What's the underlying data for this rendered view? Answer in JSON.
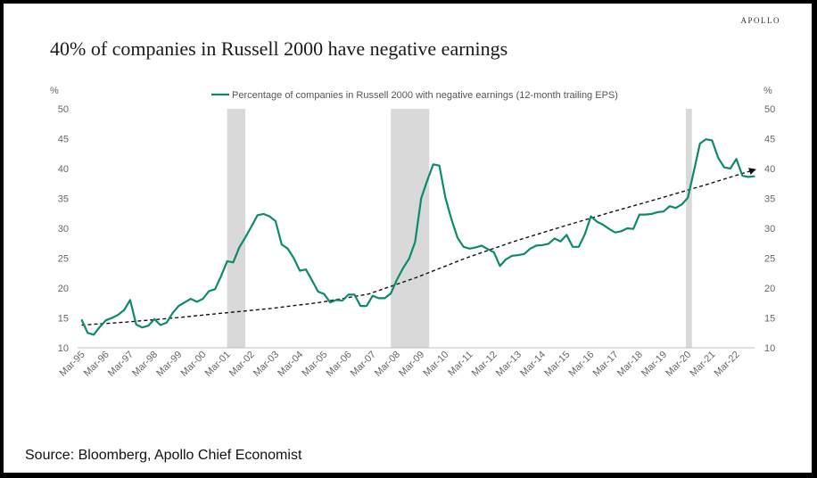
{
  "brand": "APOLLO",
  "title": "40% of companies in Russell 2000 have negative earnings",
  "source": "Source: Bloomberg, Apollo Chief Economist",
  "colors": {
    "series": "#0d8a6c",
    "recession": "#d9d9d9",
    "trend": "#111111"
  },
  "chart_data": {
    "type": "line",
    "unit_left": "%",
    "unit_right": "%",
    "ylim": [
      10,
      50
    ],
    "yticks": [
      10,
      15,
      20,
      25,
      30,
      35,
      40,
      45,
      50
    ],
    "x_start": 1995,
    "x_end": 2022.917,
    "xticks": [
      {
        "label": "Mar-95",
        "t": 1995.167
      },
      {
        "label": "Mar-96",
        "t": 1996.167
      },
      {
        "label": "Mar-97",
        "t": 1997.167
      },
      {
        "label": "Mar-98",
        "t": 1998.167
      },
      {
        "label": "Mar-99",
        "t": 1999.167
      },
      {
        "label": "Mar-00",
        "t": 2000.167
      },
      {
        "label": "Mar-01",
        "t": 2001.167
      },
      {
        "label": "Mar-02",
        "t": 2002.167
      },
      {
        "label": "Mar-03",
        "t": 2003.167
      },
      {
        "label": "Mar-04",
        "t": 2004.167
      },
      {
        "label": "Mar-05",
        "t": 2005.167
      },
      {
        "label": "Mar-06",
        "t": 2006.167
      },
      {
        "label": "Mar-07",
        "t": 2007.167
      },
      {
        "label": "Mar-08",
        "t": 2008.167
      },
      {
        "label": "Mar-09",
        "t": 2009.167
      },
      {
        "label": "Mar-10",
        "t": 2010.167
      },
      {
        "label": "Mar-11",
        "t": 2011.167
      },
      {
        "label": "Mar-12",
        "t": 2012.167
      },
      {
        "label": "Mar-13",
        "t": 2013.167
      },
      {
        "label": "Mar-14",
        "t": 2014.167
      },
      {
        "label": "Mar-15",
        "t": 2015.167
      },
      {
        "label": "Mar-16",
        "t": 2016.167
      },
      {
        "label": "Mar-17",
        "t": 2017.167
      },
      {
        "label": "Mar-18",
        "t": 2018.167
      },
      {
        "label": "Mar-19",
        "t": 2019.167
      },
      {
        "label": "Mar-20",
        "t": 2020.167
      },
      {
        "label": "Mar-21",
        "t": 2021.167
      },
      {
        "label": "Mar-22",
        "t": 2022.167
      }
    ],
    "recessions": [
      {
        "start": 2001.167,
        "end": 2001.917
      },
      {
        "start": 2007.917,
        "end": 2009.5
      },
      {
        "start": 2020.083,
        "end": 2020.333
      }
    ],
    "series": [
      {
        "name": "Percentage of companies in Russell 2000 with negative earnings (12-month trailing EPS)",
        "points": [
          [
            1995.167,
            14.7
          ],
          [
            1995.417,
            12.5
          ],
          [
            1995.667,
            12.2
          ],
          [
            1995.917,
            13.5
          ],
          [
            1996.167,
            14.6
          ],
          [
            1996.417,
            15.0
          ],
          [
            1996.667,
            15.5
          ],
          [
            1996.917,
            16.3
          ],
          [
            1997.167,
            18.0
          ],
          [
            1997.417,
            13.9
          ],
          [
            1997.667,
            13.4
          ],
          [
            1997.917,
            13.7
          ],
          [
            1998.167,
            14.8
          ],
          [
            1998.417,
            13.8
          ],
          [
            1998.667,
            14.2
          ],
          [
            1998.917,
            15.8
          ],
          [
            1999.167,
            17.0
          ],
          [
            1999.417,
            17.6
          ],
          [
            1999.667,
            18.2
          ],
          [
            1999.917,
            17.7
          ],
          [
            2000.167,
            18.2
          ],
          [
            2000.417,
            19.5
          ],
          [
            2000.667,
            19.8
          ],
          [
            2000.917,
            22.0
          ],
          [
            2001.167,
            24.5
          ],
          [
            2001.417,
            24.3
          ],
          [
            2001.667,
            26.8
          ],
          [
            2001.917,
            28.5
          ],
          [
            2002.167,
            30.3
          ],
          [
            2002.417,
            32.2
          ],
          [
            2002.667,
            32.4
          ],
          [
            2002.917,
            32.0
          ],
          [
            2003.167,
            31.2
          ],
          [
            2003.417,
            27.3
          ],
          [
            2003.667,
            26.6
          ],
          [
            2003.917,
            25.0
          ],
          [
            2004.167,
            22.9
          ],
          [
            2004.417,
            23.1
          ],
          [
            2004.667,
            21.3
          ],
          [
            2004.917,
            19.4
          ],
          [
            2005.167,
            19.0
          ],
          [
            2005.417,
            17.6
          ],
          [
            2005.667,
            18.0
          ],
          [
            2005.917,
            17.9
          ],
          [
            2006.167,
            18.9
          ],
          [
            2006.417,
            18.9
          ],
          [
            2006.667,
            17.0
          ],
          [
            2006.917,
            17.0
          ],
          [
            2007.167,
            18.7
          ],
          [
            2007.417,
            18.3
          ],
          [
            2007.667,
            18.3
          ],
          [
            2007.917,
            19.1
          ],
          [
            2008.167,
            21.4
          ],
          [
            2008.417,
            23.3
          ],
          [
            2008.667,
            24.9
          ],
          [
            2008.917,
            27.7
          ],
          [
            2009.167,
            35.0
          ],
          [
            2009.417,
            38.0
          ],
          [
            2009.667,
            40.7
          ],
          [
            2009.917,
            40.5
          ],
          [
            2010.167,
            35.1
          ],
          [
            2010.417,
            31.5
          ],
          [
            2010.667,
            28.4
          ],
          [
            2010.917,
            26.9
          ],
          [
            2011.167,
            26.6
          ],
          [
            2011.417,
            26.8
          ],
          [
            2011.667,
            27.1
          ],
          [
            2011.917,
            26.5
          ],
          [
            2012.167,
            26.0
          ],
          [
            2012.417,
            23.7
          ],
          [
            2012.667,
            24.8
          ],
          [
            2012.917,
            25.4
          ],
          [
            2013.167,
            25.5
          ],
          [
            2013.417,
            25.7
          ],
          [
            2013.667,
            26.6
          ],
          [
            2013.917,
            27.1
          ],
          [
            2014.167,
            27.2
          ],
          [
            2014.417,
            27.4
          ],
          [
            2014.667,
            28.3
          ],
          [
            2014.917,
            27.8
          ],
          [
            2015.167,
            28.9
          ],
          [
            2015.417,
            26.9
          ],
          [
            2015.667,
            26.9
          ],
          [
            2015.917,
            29.0
          ],
          [
            2016.167,
            32.0
          ],
          [
            2016.417,
            31.1
          ],
          [
            2016.667,
            30.6
          ],
          [
            2016.917,
            29.9
          ],
          [
            2017.167,
            29.3
          ],
          [
            2017.417,
            29.5
          ],
          [
            2017.667,
            30.0
          ],
          [
            2017.917,
            29.9
          ],
          [
            2018.167,
            32.3
          ],
          [
            2018.417,
            32.3
          ],
          [
            2018.667,
            32.4
          ],
          [
            2018.917,
            32.7
          ],
          [
            2019.167,
            32.8
          ],
          [
            2019.417,
            33.7
          ],
          [
            2019.667,
            33.4
          ],
          [
            2019.917,
            34.0
          ],
          [
            2020.167,
            35.1
          ],
          [
            2020.417,
            39.6
          ],
          [
            2020.667,
            44.2
          ],
          [
            2020.917,
            44.9
          ],
          [
            2021.167,
            44.7
          ],
          [
            2021.417,
            41.8
          ],
          [
            2021.667,
            40.2
          ],
          [
            2021.917,
            40.0
          ],
          [
            2022.167,
            41.6
          ],
          [
            2022.417,
            38.8
          ],
          [
            2022.667,
            38.6
          ],
          [
            2022.917,
            38.7
          ]
        ]
      }
    ],
    "trend": [
      [
        1995.167,
        13.8
      ],
      [
        1997.0,
        14.3
      ],
      [
        1999.0,
        15.0
      ],
      [
        2001.0,
        15.8
      ],
      [
        2003.0,
        16.6
      ],
      [
        2005.0,
        17.6
      ],
      [
        2007.0,
        19.0
      ],
      [
        2009.0,
        21.8
      ],
      [
        2011.0,
        25.0
      ],
      [
        2013.0,
        27.8
      ],
      [
        2015.0,
        30.3
      ],
      [
        2017.0,
        32.7
      ],
      [
        2019.0,
        35.0
      ],
      [
        2021.0,
        37.4
      ],
      [
        2022.917,
        39.8
      ]
    ]
  }
}
